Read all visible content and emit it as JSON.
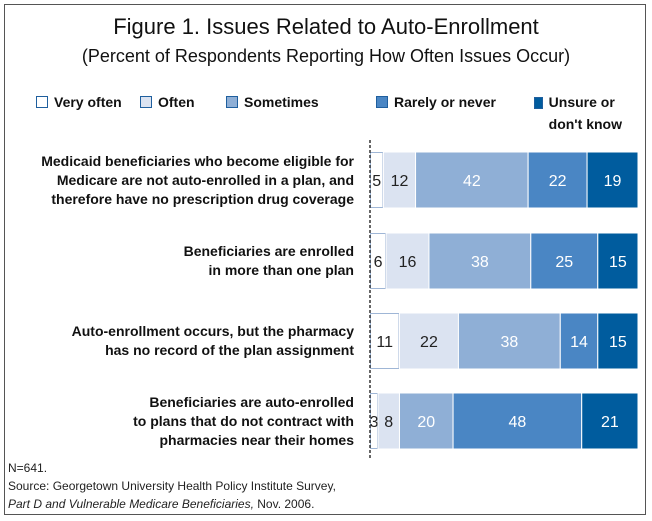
{
  "title": "Figure 1. Issues Related to Auto-Enrollment",
  "subtitle": "(Percent of Respondents Reporting How Often Issues Occur)",
  "legend": [
    {
      "label": "Very often"
    },
    {
      "label": "Often"
    },
    {
      "label": "Sometimes"
    },
    {
      "label": "Rarely or never"
    },
    {
      "label": "Unsure or don't know"
    }
  ],
  "colors": [
    "#ffffff",
    "#dbe3f1",
    "#8fafd6",
    "#4a86c4",
    "#005c9e"
  ],
  "footnote": {
    "n": "N=641.",
    "source": "Source: Georgetown University Health Policy Institute Survey,",
    "source2_italic": "Part D and Vulnerable Medicare Beneficiaries,",
    "source2_rest": " Nov. 2006."
  },
  "chart_data": {
    "type": "bar",
    "orientation": "horizontal",
    "stacked": true,
    "categories": [
      "Medicaid beneficiaries who become eligible for Medicare are not auto-enrolled in a plan, and therefore have no prescription drug coverage",
      "Beneficiaries are enrolled in more than one plan",
      "Auto-enrollment occurs, but the pharmacy has no record of the plan assignment",
      "Beneficiaries are auto-enrolled to plans that do not contract with pharmacies near their homes"
    ],
    "category_lines": [
      [
        "Medicaid beneficiaries who become eligible for",
        "Medicare are not auto-enrolled in a plan, and",
        "therefore have no prescription drug coverage"
      ],
      [
        "Beneficiaries are enrolled",
        "in more than one plan"
      ],
      [
        "Auto-enrollment occurs, but the pharmacy",
        "has no record of the plan assignment"
      ],
      [
        "Beneficiaries are auto-enrolled",
        "to plans that do not contract with",
        "pharmacies near their homes"
      ]
    ],
    "series": [
      {
        "name": "Very often",
        "values": [
          5,
          6,
          11,
          3
        ]
      },
      {
        "name": "Often",
        "values": [
          12,
          16,
          22,
          8
        ]
      },
      {
        "name": "Sometimes",
        "values": [
          42,
          38,
          38,
          20
        ]
      },
      {
        "name": "Rarely or never",
        "values": [
          22,
          25,
          14,
          48
        ]
      },
      {
        "name": "Unsure or don't know",
        "values": [
          19,
          15,
          15,
          21
        ]
      }
    ],
    "xlim": [
      0,
      100
    ],
    "legend_position": "top"
  }
}
